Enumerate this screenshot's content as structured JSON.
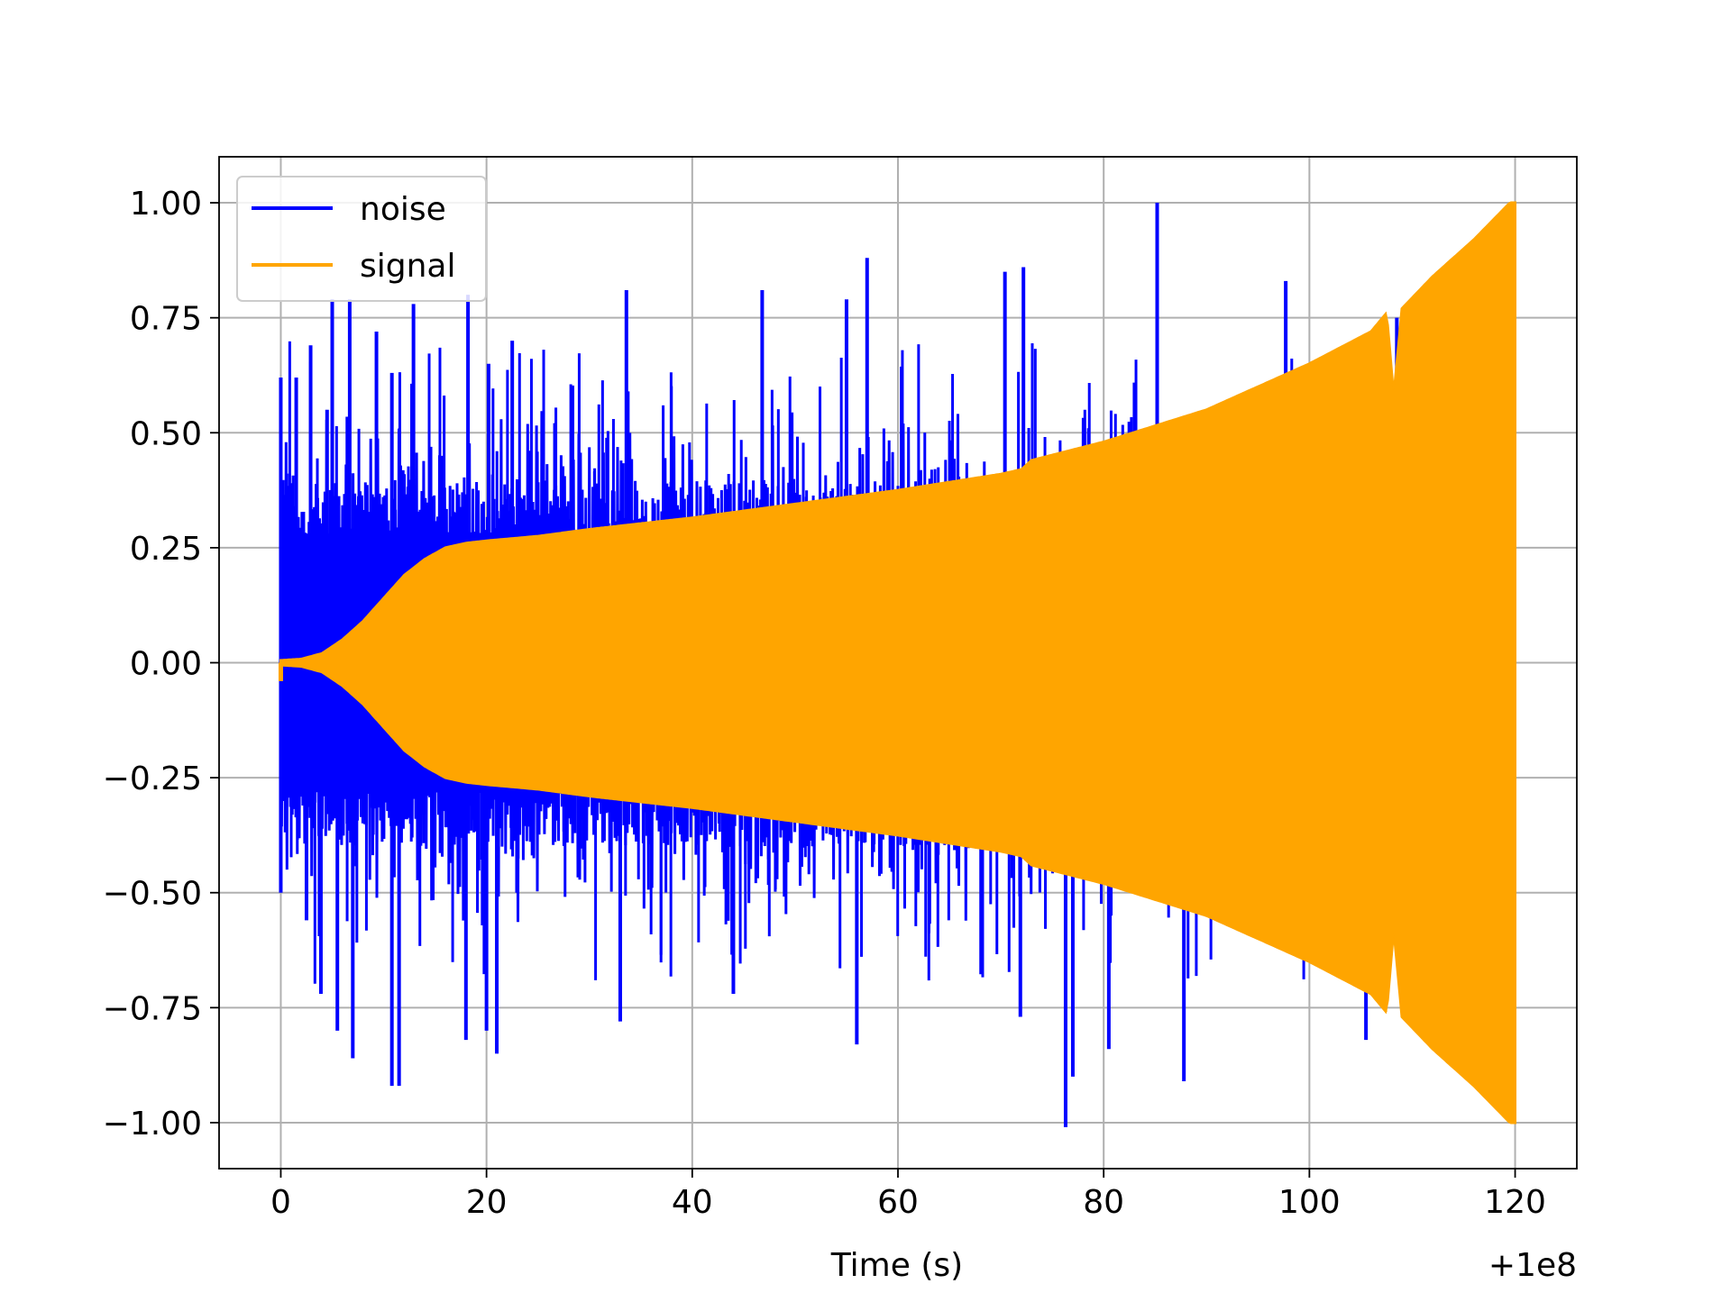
{
  "chart_data": {
    "type": "line",
    "title": "",
    "xlabel": "Time (s)",
    "ylabel": "",
    "x_offset_label": "+1e8",
    "xlim": [
      -6,
      126
    ],
    "ylim": [
      -1.1,
      1.1
    ],
    "xticks": [
      0,
      20,
      40,
      60,
      80,
      100,
      120
    ],
    "xtick_labels": [
      "0",
      "20",
      "40",
      "60",
      "80",
      "100",
      "120"
    ],
    "yticks": [
      1.0,
      0.75,
      0.5,
      0.25,
      0.0,
      -0.25,
      -0.5,
      -0.75,
      -1.0
    ],
    "ytick_labels": [
      "1.00",
      "0.75",
      "0.50",
      "0.25",
      "0.00",
      "−0.25",
      "−0.50",
      "−0.75",
      "−1.00"
    ],
    "grid": true,
    "legend_position": "top-left",
    "series": [
      {
        "name": "noise",
        "color": "#0000ff",
        "x_range": [
          0,
          120
        ],
        "description_values": {
          "peaks": [
            [
              0.0,
              0.62
            ],
            [
              1.5,
              0.62
            ],
            [
              2.9,
              0.69
            ],
            [
              4.5,
              0.55
            ],
            [
              5.0,
              0.79
            ],
            [
              6.7,
              0.79
            ],
            [
              9.3,
              0.72
            ],
            [
              10.8,
              0.63
            ],
            [
              12.9,
              0.78
            ],
            [
              18.2,
              0.8
            ],
            [
              20.2,
              0.65
            ],
            [
              22.5,
              0.7
            ],
            [
              33.6,
              0.81
            ],
            [
              46.8,
              0.81
            ],
            [
              55.0,
              0.79
            ],
            [
              57.0,
              0.88
            ],
            [
              70.4,
              0.85
            ],
            [
              72.2,
              0.86
            ],
            [
              85.2,
              1.0
            ],
            [
              97.7,
              0.83
            ],
            [
              108.5,
              0.75
            ]
          ],
          "troughs": [
            [
              0.0,
              -0.5
            ],
            [
              2.5,
              -0.56
            ],
            [
              3.9,
              -0.72
            ],
            [
              5.5,
              -0.8
            ],
            [
              7.0,
              -0.86
            ],
            [
              10.8,
              -0.92
            ],
            [
              11.5,
              -0.92
            ],
            [
              18.0,
              -0.82
            ],
            [
              20.0,
              -0.8
            ],
            [
              21.0,
              -0.85
            ],
            [
              33.0,
              -0.78
            ],
            [
              44.0,
              -0.72
            ],
            [
              56.0,
              -0.83
            ],
            [
              71.9,
              -0.77
            ],
            [
              76.3,
              -1.01
            ],
            [
              77.0,
              -0.9
            ],
            [
              80.5,
              -0.84
            ],
            [
              87.8,
              -0.91
            ],
            [
              105.5,
              -0.82
            ]
          ]
        }
      },
      {
        "name": "signal",
        "color": "#ffa500",
        "x_range": [
          0,
          120
        ],
        "envelope": [
          [
            0,
            0.005
          ],
          [
            2,
            0.008
          ],
          [
            4,
            0.02
          ],
          [
            6,
            0.05
          ],
          [
            8,
            0.09
          ],
          [
            10,
            0.14
          ],
          [
            12,
            0.19
          ],
          [
            14,
            0.225
          ],
          [
            16,
            0.25
          ],
          [
            18,
            0.26
          ],
          [
            20,
            0.265
          ],
          [
            25,
            0.275
          ],
          [
            30,
            0.29
          ],
          [
            40,
            0.315
          ],
          [
            50,
            0.345
          ],
          [
            60,
            0.375
          ],
          [
            70,
            0.41
          ],
          [
            72,
            0.42
          ],
          [
            73,
            0.44
          ],
          [
            80,
            0.48
          ],
          [
            90,
            0.55
          ],
          [
            100,
            0.65
          ],
          [
            106,
            0.72
          ],
          [
            107.5,
            0.76
          ],
          [
            108.2,
            0.58
          ],
          [
            109,
            0.77
          ],
          [
            112,
            0.84
          ],
          [
            116,
            0.92
          ],
          [
            119.5,
            1.0
          ],
          [
            120,
            1.0
          ]
        ]
      }
    ]
  }
}
